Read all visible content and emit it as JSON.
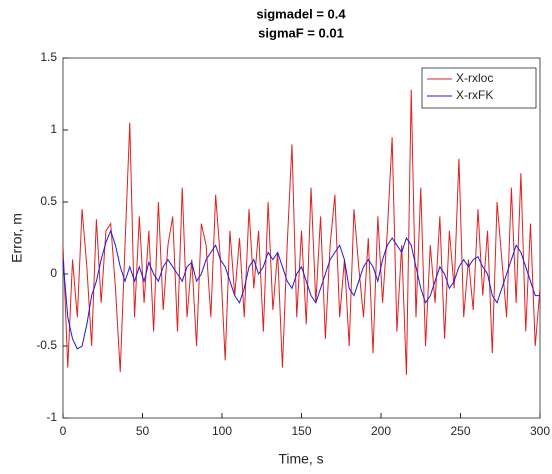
{
  "chart_data": {
    "type": "line",
    "title": [
      "sigmadel = 0.4",
      "sigmaF = 0.01"
    ],
    "xlabel": "Time, s",
    "ylabel": "Error, m",
    "x": [
      0,
      3,
      6,
      9,
      12,
      15,
      18,
      21,
      24,
      27,
      30,
      33,
      36,
      39,
      42,
      45,
      48,
      51,
      54,
      57,
      60,
      63,
      66,
      69,
      72,
      75,
      78,
      81,
      84,
      87,
      90,
      93,
      96,
      99,
      102,
      105,
      108,
      111,
      114,
      117,
      120,
      123,
      126,
      129,
      132,
      135,
      138,
      141,
      144,
      147,
      150,
      153,
      156,
      159,
      162,
      165,
      168,
      171,
      174,
      177,
      180,
      183,
      186,
      189,
      192,
      195,
      198,
      201,
      204,
      207,
      210,
      213,
      216,
      219,
      222,
      225,
      228,
      231,
      234,
      237,
      240,
      243,
      246,
      249,
      252,
      255,
      258,
      261,
      264,
      267,
      270,
      273,
      276,
      279,
      282,
      285,
      288,
      291,
      294,
      297,
      300
    ],
    "series": [
      {
        "name": "X-rxloc",
        "color": "#e02020",
        "values": [
          0.2,
          -0.65,
          0.1,
          -0.3,
          0.45,
          0.05,
          -0.5,
          0.38,
          -0.2,
          0.3,
          0.35,
          -0.1,
          -0.68,
          0.2,
          1.05,
          -0.3,
          0.4,
          -0.2,
          0.3,
          -0.4,
          0.5,
          -0.25,
          0.2,
          0.4,
          -0.4,
          0.6,
          -0.3,
          0.1,
          -0.5,
          0.35,
          0.2,
          -0.3,
          0.55,
          0.1,
          -0.6,
          0.3,
          -0.15,
          0.25,
          -0.3,
          0.45,
          -0.1,
          0.3,
          -0.4,
          0.5,
          -0.25,
          0.15,
          -0.65,
          0.2,
          0.9,
          -0.3,
          0.3,
          -0.35,
          0.6,
          -0.2,
          0.4,
          -0.45,
          0.2,
          0.55,
          -0.3,
          0.1,
          -0.5,
          0.45,
          0.05,
          -0.3,
          0.25,
          -0.55,
          0.4,
          -0.2,
          0.3,
          0.95,
          -0.4,
          0.2,
          -0.7,
          1.28,
          -0.3,
          0.6,
          -0.5,
          0.2,
          -0.2,
          0.4,
          -0.45,
          0.3,
          -0.1,
          0.8,
          -0.3,
          0.1,
          -0.25,
          0.45,
          -0.15,
          0.3,
          -0.55,
          0.5,
          0.1,
          -0.3,
          0.6,
          -0.2,
          0.7,
          -0.4,
          0.35,
          -0.5,
          -0.1
        ]
      },
      {
        "name": "X-rxFK",
        "color": "#1a1ae0",
        "values": [
          0.1,
          -0.3,
          -0.45,
          -0.52,
          -0.5,
          -0.35,
          -0.15,
          -0.05,
          0.1,
          0.22,
          0.3,
          0.2,
          0.05,
          -0.05,
          0.05,
          -0.05,
          0.05,
          -0.05,
          0.08,
          0.0,
          -0.05,
          0.05,
          0.1,
          0.05,
          0.0,
          -0.05,
          0.05,
          0.08,
          -0.05,
          0.0,
          0.1,
          0.15,
          0.2,
          0.1,
          0.05,
          -0.05,
          -0.15,
          -0.2,
          -0.1,
          0.05,
          0.1,
          0.0,
          0.05,
          0.15,
          0.1,
          0.15,
          0.05,
          -0.05,
          -0.1,
          0.0,
          0.05,
          -0.05,
          -0.15,
          -0.2,
          -0.1,
          0.0,
          0.1,
          0.15,
          0.2,
          0.1,
          -0.1,
          -0.15,
          -0.05,
          0.05,
          0.1,
          0.05,
          -0.05,
          0.1,
          0.2,
          0.25,
          0.2,
          0.15,
          0.25,
          0.2,
          0.05,
          -0.1,
          -0.2,
          -0.15,
          -0.05,
          0.05,
          0.0,
          -0.1,
          -0.05,
          0.05,
          0.1,
          0.05,
          0.1,
          0.12,
          0.05,
          0.0,
          -0.15,
          -0.2,
          -0.1,
          0.0,
          0.1,
          0.2,
          0.15,
          0.05,
          -0.05,
          -0.15,
          -0.15
        ]
      }
    ],
    "xlim": [
      0,
      300
    ],
    "xticks": [
      0,
      50,
      100,
      150,
      200,
      250,
      300
    ],
    "ylim": [
      -1,
      1.5
    ],
    "yticks": [
      -1,
      -0.5,
      0,
      0.5,
      1,
      1.5
    ],
    "grid": false,
    "legend": "upper-right"
  }
}
